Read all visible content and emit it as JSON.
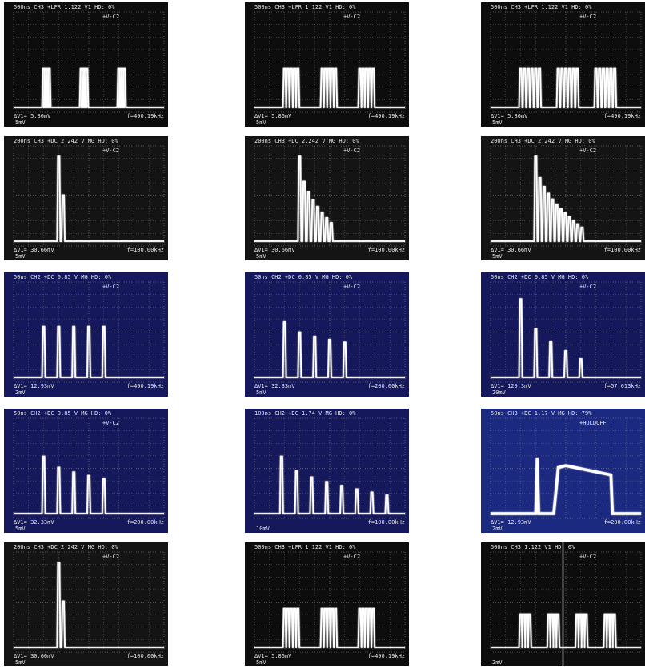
{
  "panels": [
    {
      "header": "500ns CH3 +LFR 1.122 V1 HD: 0%",
      "marker": "+V-C2",
      "readout": "ΔV1= 5.86mV",
      "frequency": "f=490.19kHz",
      "scale": "5mV",
      "background": "#0d0d0d"
    },
    {
      "header": "500ns CH3 +LFR 1.122 V1 HD: 0%",
      "marker": "+V-C2",
      "readout": "ΔV1= 5.86mV",
      "frequency": "f=490.19kHz",
      "scale": "5mV",
      "background": "#0d0d0d"
    },
    {
      "header": "500ns CH3 +LFR 1.122 V1 HD: 0%",
      "marker": "+V-C2",
      "readout": "ΔV1= 5.86mV",
      "frequency": "f=490.19kHz",
      "scale": "5mV",
      "background": "#0d0d0d"
    },
    {
      "header": "200ns CH3 +DC 2.242 V MG HD: 0%",
      "marker": "+V-C2",
      "readout": "ΔV1= 30.66mV",
      "frequency": "f=100.00kHz",
      "scale": "5mV",
      "background": "#141414"
    },
    {
      "header": "200ns CH3 +DC 2.242 V MG HD: 0%",
      "marker": "+V-C2",
      "readout": "ΔV1= 30.66mV",
      "frequency": "f=100.00kHz",
      "scale": "5mV",
      "background": "#141414"
    },
    {
      "header": "200ns CH3 +DC 2.242 V MG HD: 0%",
      "marker": "+V-C2",
      "readout": "ΔV1= 30.66mV",
      "frequency": "f=100.00kHz",
      "scale": "5mV",
      "background": "#141414"
    },
    {
      "header": "50ns CH2 +DC 0.85 V MG HD: 0%",
      "marker": "+V-C2",
      "readout": "ΔV1= 12.93mV",
      "frequency": "f=490.19kHz",
      "scale": "2mV",
      "background": "#15185a"
    },
    {
      "header": "50ns CH2 +DC 0.85 V MG HD: 0%",
      "marker": "+V-C2",
      "readout": "ΔV1= 32.33mV",
      "frequency": "f=200.00kHz",
      "scale": "5mV",
      "background": "#15185a"
    },
    {
      "header": "50ns CH2 +DC 0.85 V MG HD: 0%",
      "marker": "+V-C2",
      "readout": "ΔV1= 129.3mV",
      "frequency": "f=57.013kHz",
      "scale": "20mV",
      "background": "#15185a"
    },
    {
      "header": "50ns CH2 +DC 0.85 V MG HD: 0%",
      "marker": "+V-C2",
      "readout": "ΔV1= 32.33mV",
      "frequency": "f=200.00kHz",
      "scale": "5mV",
      "background": "#15185a"
    },
    {
      "header": "100ns CH2 +DC 1.74 V MG HD: 0%",
      "frequency": "f=100.00kHz",
      "scale": "10mV",
      "background": "#15185a"
    },
    {
      "header": "50ns CH3 +DC 1.17 V MG HD: 79%",
      "marker": "+HOLDOFF",
      "readout": "ΔV1= 12.93mV",
      "frequency": "f=200.00kHz",
      "scale": "2mV",
      "background": "#1b2a80"
    },
    {
      "header": "200ns CH3 +DC 2.242 V MG HD: 0%",
      "marker": "+V-C2",
      "readout": "ΔV1= 30.66mV",
      "frequency": "f=100.00kHz",
      "scale": "5mV",
      "background": "#141414"
    },
    {
      "header": "500ns CH3 +LFR 1.122 V1 HD: 0%",
      "marker": "+V-C2",
      "readout": "ΔV1= 5.86mV",
      "frequency": "f=490.19kHz",
      "scale": "5mV",
      "background": "#0d0d0d"
    },
    {
      "header": "500ns CH3 1.122 V1 HD: 0%",
      "marker": "+V-C2",
      "scale": "2mV",
      "background": "#0d0d0d"
    }
  ]
}
